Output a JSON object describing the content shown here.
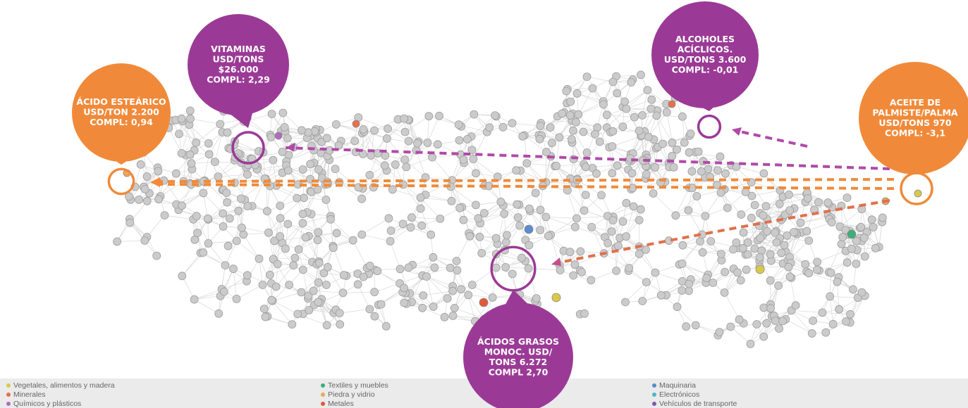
{
  "callouts": [
    {
      "lines": [
        "VITAMINAS",
        "USD/TONS",
        "$26.000",
        "COMPL: 2,29"
      ]
    },
    {
      "lines": [
        "ÁCIDO ESTEÁRICO",
        "USD/TON 2.200",
        "COMPL: 0,94"
      ]
    },
    {
      "lines": [
        "ALCOHOLES",
        "ACÍCLICOS.",
        "USD/TONS 3.600",
        "COMPL: -0,01"
      ]
    },
    {
      "lines": [
        "ACEITE DE",
        "PALMISTE/PALMA",
        "USD/TONS 970",
        "COMPL: -3,1"
      ]
    },
    {
      "lines": [
        "ÁCIDOS GRASOS",
        "MONOC. USD/",
        "TONS 6.272",
        "COMPL 2,70"
      ]
    }
  ],
  "legend": [
    {
      "label": "Vegetales, alimentos y madera",
      "color": "#d9c94a"
    },
    {
      "label": "Minerales",
      "color": "#e8704a"
    },
    {
      "label": "Químicos y plásticos",
      "color": "#b36ac0"
    },
    {
      "label": "Textiles y muebles",
      "color": "#3fae7a"
    },
    {
      "label": "Piedra y vidrio",
      "color": "#f0a55a"
    },
    {
      "label": "Metales",
      "color": "#e05a3a"
    },
    {
      "label": "Maquinaria",
      "color": "#5a8ad0"
    },
    {
      "label": "Electrónicos",
      "color": "#4ab8c8"
    },
    {
      "label": "Vehículos de transporte",
      "color": "#7a5ab0"
    }
  ]
}
